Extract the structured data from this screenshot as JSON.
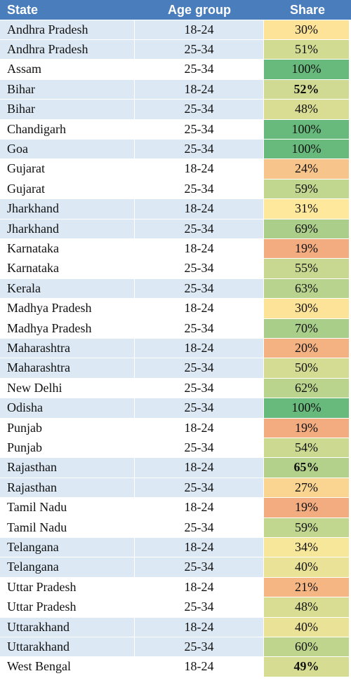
{
  "table": {
    "header": [
      "State",
      "Age group",
      "Share"
    ],
    "rows": [
      {
        "state": "Andhra Pradesh",
        "age_group": "18-24",
        "share": "30%"
      },
      {
        "state": "Andhra Pradesh",
        "age_group": "25-34",
        "share": "51%"
      },
      {
        "state": "Assam",
        "age_group": "25-34",
        "share": "100%"
      },
      {
        "state": "Bihar",
        "age_group": "18-24",
        "share": "52%",
        "bold": true
      },
      {
        "state": "Bihar",
        "age_group": "25-34",
        "share": "48%"
      },
      {
        "state": "Chandigarh",
        "age_group": "25-34",
        "share": "100%"
      },
      {
        "state": "Goa",
        "age_group": "25-34",
        "share": "100%"
      },
      {
        "state": "Gujarat",
        "age_group": "18-24",
        "share": "24%"
      },
      {
        "state": "Gujarat",
        "age_group": "25-34",
        "share": "59%"
      },
      {
        "state": "Jharkhand",
        "age_group": "18-24",
        "share": "31%"
      },
      {
        "state": "Jharkhand",
        "age_group": "25-34",
        "share": "69%"
      },
      {
        "state": "Karnataka",
        "age_group": "18-24",
        "share": "19%"
      },
      {
        "state": "Karnataka",
        "age_group": "25-34",
        "share": "55%"
      },
      {
        "state": "Kerala",
        "age_group": "25-34",
        "share": "63%"
      },
      {
        "state": "Madhya Pradesh",
        "age_group": "18-24",
        "share": "30%"
      },
      {
        "state": "Madhya Pradesh",
        "age_group": "25-34",
        "share": "70%"
      },
      {
        "state": "Maharashtra",
        "age_group": "18-24",
        "share": "20%"
      },
      {
        "state": "Maharashtra",
        "age_group": "25-34",
        "share": "50%"
      },
      {
        "state": "New Delhi",
        "age_group": "25-34",
        "share": "62%"
      },
      {
        "state": "Odisha",
        "age_group": "25-34",
        "share": "100%"
      },
      {
        "state": "Punjab",
        "age_group": "18-24",
        "share": "19%"
      },
      {
        "state": "Punjab",
        "age_group": "25-34",
        "share": "54%"
      },
      {
        "state": "Rajasthan",
        "age_group": "18-24",
        "share": "65%",
        "bold": true
      },
      {
        "state": "Rajasthan",
        "age_group": "25-34",
        "share": "27%"
      },
      {
        "state": "Tamil Nadu",
        "age_group": "18-24",
        "share": "19%"
      },
      {
        "state": "Tamil Nadu",
        "age_group": "25-34",
        "share": "59%"
      },
      {
        "state": "Telangana",
        "age_group": "18-24",
        "share": "34%"
      },
      {
        "state": "Telangana",
        "age_group": "25-34",
        "share": "40%"
      },
      {
        "state": "Uttar Pradesh",
        "age_group": "18-24",
        "share": "21%"
      },
      {
        "state": "Uttar Pradesh",
        "age_group": "25-34",
        "share": "48%"
      },
      {
        "state": "Uttarakhand",
        "age_group": "18-24",
        "share": "40%"
      },
      {
        "state": "Uttarakhand",
        "age_group": "25-34",
        "share": "60%"
      },
      {
        "state": "West Bengal",
        "age_group": "18-24",
        "share": "49%",
        "bold": true
      }
    ]
  }
}
